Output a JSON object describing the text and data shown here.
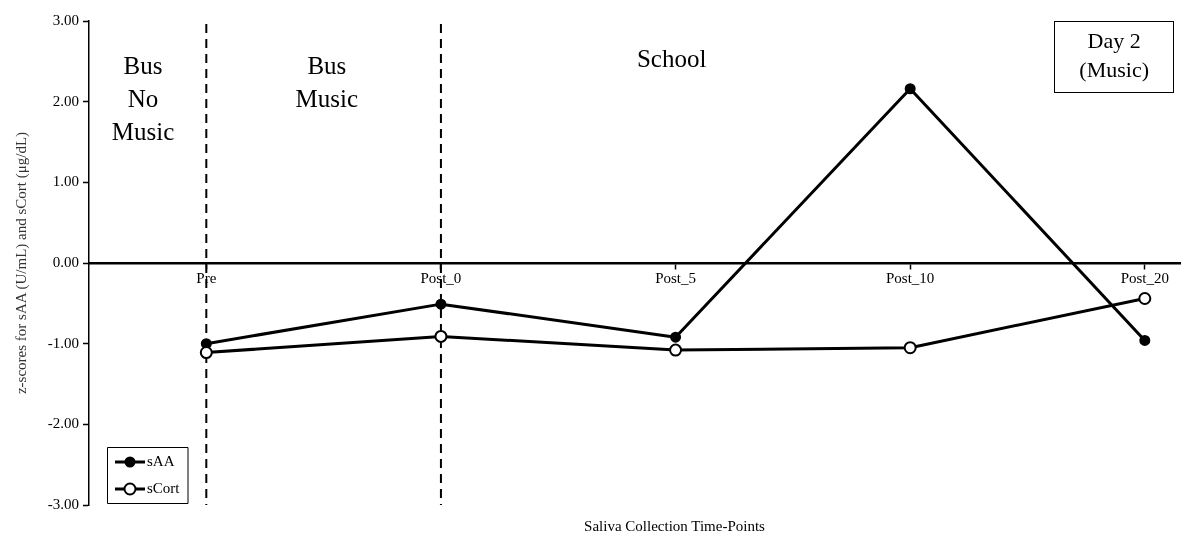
{
  "chart_data": {
    "type": "line",
    "title": "Day 2\n(Music)",
    "xlabel": "Saliva Collection Time-Points",
    "ylabel": "z-scores for sAA (U/mL) and sCort (μg/dL)",
    "categories": [
      "Pre",
      "Post_0",
      "Post_5",
      "Post_10",
      "Post_20"
    ],
    "series": [
      {
        "name": "sAA",
        "color": "#000000",
        "values": [
          -1.0,
          -0.51,
          -0.92,
          2.16,
          -0.96
        ]
      },
      {
        "name": "sCort",
        "color": "#000000",
        "values": [
          -1.11,
          -0.91,
          -1.08,
          -1.05,
          -0.44
        ]
      }
    ],
    "ylim": [
      -3,
      3
    ],
    "yticks": [
      {
        "value": -3,
        "label": "-3.00"
      },
      {
        "value": -2,
        "label": "-2.00"
      },
      {
        "value": -1,
        "label": "-1.00"
      },
      {
        "value": 0,
        "label": "0.00"
      },
      {
        "value": 1,
        "label": "1.00"
      },
      {
        "value": 2,
        "label": "2.00"
      },
      {
        "value": 3,
        "label": "3.00"
      }
    ],
    "ref_lines": [
      {
        "axis": "x",
        "value": "Pre",
        "color": "#000000",
        "line_style": "dashed"
      },
      {
        "axis": "x",
        "value": "Post_0",
        "color": "#000000",
        "line_style": "dashed"
      }
    ],
    "annotations": [
      "Bus\nNo\nMusic",
      "Bus\nMusic",
      "School"
    ],
    "legend": "bottom left",
    "marker": "circle",
    "line_style": "solid",
    "grid": false
  }
}
